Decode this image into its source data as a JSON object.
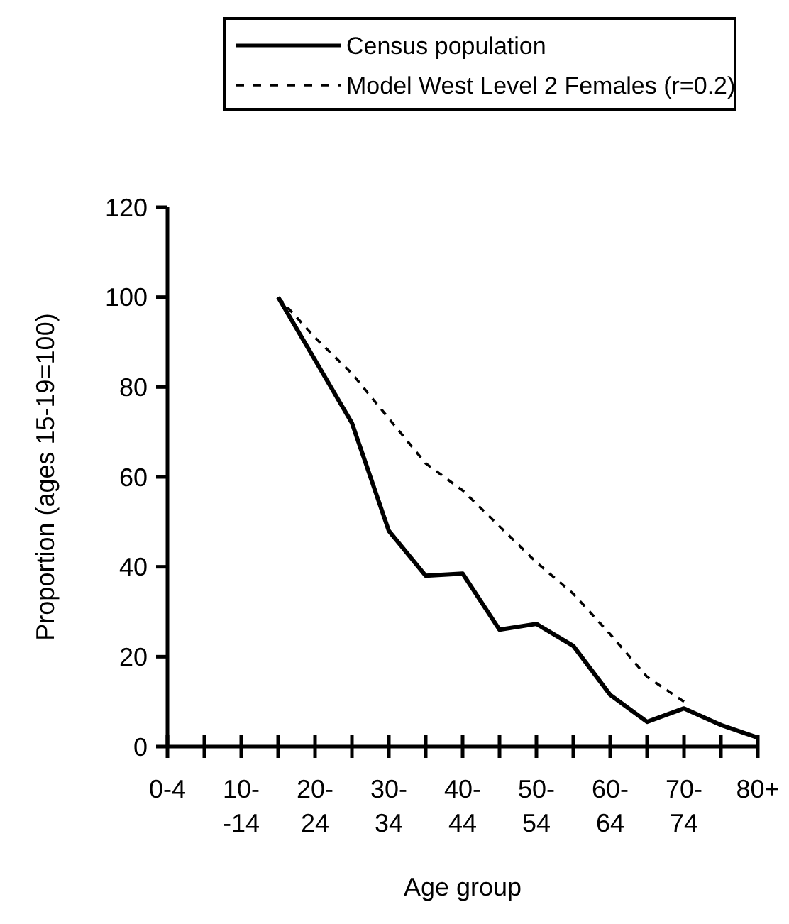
{
  "chart_data": {
    "type": "line",
    "xlabel": "Age group",
    "ylabel": "Proportion (ages 15-19=100)",
    "categories": [
      "0-4",
      null,
      "10-\n-14",
      null,
      "20-\n24",
      null,
      "30-\n34",
      null,
      "40-\n44",
      null,
      "50-\n54",
      null,
      "60-\n64",
      null,
      "70-\n74",
      null,
      "80+"
    ],
    "series": [
      {
        "name": "Census population",
        "color": "#000000",
        "line_style": "solid",
        "values": [
          null,
          null,
          null,
          100,
          86,
          72,
          48,
          38,
          38.5,
          26,
          27.3,
          22.4,
          11.5,
          5.5,
          8.5,
          4.8,
          2
        ]
      },
      {
        "name": "Model West Level 2 Females (r=0.2)",
        "color": "#000000",
        "line_style": "dashed",
        "values": [
          null,
          null,
          null,
          100,
          91,
          83,
          73,
          63,
          57,
          49,
          41,
          34,
          25,
          15.5,
          10,
          null,
          null
        ]
      }
    ],
    "ylim": [
      0,
      120
    ],
    "yticks": [
      0,
      20,
      40,
      60,
      80,
      100,
      120
    ],
    "grid": false,
    "legend": "top",
    "marker": "none"
  }
}
